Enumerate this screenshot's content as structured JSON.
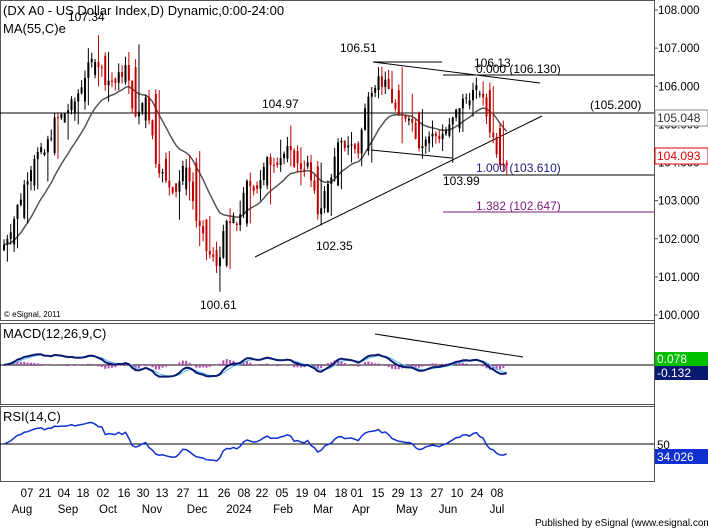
{
  "chart_data": {
    "type": "candlestick",
    "title": "(DX A0 - US Dollar Index,D) Dynamic,0:00-24:00",
    "ma_label": "MA(55,C)e",
    "copyright": "© eSignal, 2011",
    "footer": "Published by eSignal (www.esignal.com)",
    "price_axis": {
      "ticks": [
        "108.000",
        "107.000",
        "106.000",
        "105.000",
        "104.000",
        "103.000",
        "102.000",
        "101.000",
        "100.000"
      ],
      "range": [
        99.9,
        108.1
      ]
    },
    "x_day_labels": [
      "07",
      "21",
      "04",
      "18",
      "02",
      "16",
      "30",
      "13",
      "27",
      "11",
      "26",
      "08",
      "22",
      "05",
      "19",
      "04",
      "18",
      "01",
      "15",
      "29",
      "13",
      "27",
      "10",
      "24",
      "08"
    ],
    "x_month_labels": [
      "Aug",
      "Sep",
      "Oct",
      "Nov",
      "Dec",
      "2024",
      "Feb",
      "Mar",
      "Apr",
      "May",
      "Jun",
      "Jul"
    ],
    "price_labels": {
      "high_oct": "107.34",
      "low_dec": "100.61",
      "level_104_97": "104.97",
      "high_apr": "106.51",
      "high_jun": "106.13",
      "low_mar": "102.35",
      "low_jun": "103.99",
      "fib_0": "0.000 (106.130)",
      "fib_1": "1.000 (103.610)",
      "fib_1382": "1.382 (102.647)",
      "resistance": "(105.200)"
    },
    "price_tags": {
      "ma_value": "105.048",
      "last_price": "104.093"
    },
    "ma_color": "#555555",
    "fib_color_1": "#1b1b7a",
    "fib_color_1382": "#7a1a7a",
    "last_price_color": "#e00000",
    "macd": {
      "label": "MACD(12,26,9,C)",
      "ticks": [
        "0.078",
        "-0.132"
      ],
      "line_color": "#0a1a70",
      "signal_color": "#56b8e8",
      "hist_color": "#b048b0"
    },
    "rsi": {
      "label": "RSI(14,C)",
      "ticks": [
        "50",
        "34.026"
      ],
      "line_color": "#1030d0"
    },
    "candles": [
      {
        "d": "2023-07-31",
        "o": 101.7,
        "h": 101.9,
        "l": 101.4,
        "c": 101.85
      },
      {
        "d": "2023-08-07",
        "o": 101.85,
        "h": 102.7,
        "l": 101.75,
        "c": 102.55
      },
      {
        "d": "2023-08-14",
        "o": 102.55,
        "h": 103.6,
        "l": 102.4,
        "c": 103.4
      },
      {
        "d": "2023-08-21",
        "o": 103.4,
        "h": 104.4,
        "l": 103.3,
        "c": 104.2
      },
      {
        "d": "2023-08-28",
        "o": 104.2,
        "h": 104.5,
        "l": 103.5,
        "c": 104.25
      },
      {
        "d": "2023-09-04",
        "o": 104.25,
        "h": 105.2,
        "l": 104.1,
        "c": 105.05
      },
      {
        "d": "2023-09-11",
        "o": 105.05,
        "h": 105.4,
        "l": 104.6,
        "c": 105.3
      },
      {
        "d": "2023-09-18",
        "o": 105.3,
        "h": 105.8,
        "l": 105.0,
        "c": 105.6
      },
      {
        "d": "2023-09-25",
        "o": 105.6,
        "h": 107.0,
        "l": 105.5,
        "c": 106.3
      },
      {
        "d": "2023-10-02",
        "o": 106.3,
        "h": 107.34,
        "l": 106.0,
        "c": 106.8
      },
      {
        "d": "2023-10-09",
        "o": 106.8,
        "h": 106.9,
        "l": 105.6,
        "c": 106.2
      },
      {
        "d": "2023-10-16",
        "o": 106.2,
        "h": 106.6,
        "l": 105.9,
        "c": 106.1
      },
      {
        "d": "2023-10-23",
        "o": 106.1,
        "h": 106.9,
        "l": 105.8,
        "c": 106.5
      },
      {
        "d": "2023-10-30",
        "o": 106.5,
        "h": 107.1,
        "l": 105.0,
        "c": 105.1
      },
      {
        "d": "2023-11-06",
        "o": 105.1,
        "h": 105.9,
        "l": 105.0,
        "c": 105.8
      },
      {
        "d": "2023-11-13",
        "o": 105.8,
        "h": 105.9,
        "l": 103.8,
        "c": 104.1
      },
      {
        "d": "2023-11-20",
        "o": 104.1,
        "h": 104.3,
        "l": 103.2,
        "c": 103.45
      },
      {
        "d": "2023-11-27",
        "o": 103.45,
        "h": 103.8,
        "l": 102.5,
        "c": 103.3
      },
      {
        "d": "2023-12-04",
        "o": 103.3,
        "h": 104.2,
        "l": 103.0,
        "c": 104.0
      },
      {
        "d": "2023-12-11",
        "o": 104.0,
        "h": 104.3,
        "l": 101.8,
        "c": 102.5
      },
      {
        "d": "2023-12-18",
        "o": 102.5,
        "h": 102.6,
        "l": 101.5,
        "c": 101.7
      },
      {
        "d": "2023-12-25",
        "o": 101.7,
        "h": 101.8,
        "l": 100.61,
        "c": 101.3
      },
      {
        "d": "2024-01-01",
        "o": 101.3,
        "h": 102.8,
        "l": 101.2,
        "c": 102.4
      },
      {
        "d": "2024-01-08",
        "o": 102.4,
        "h": 103.0,
        "l": 102.2,
        "c": 102.4
      },
      {
        "d": "2024-01-15",
        "o": 102.4,
        "h": 103.7,
        "l": 102.4,
        "c": 103.4
      },
      {
        "d": "2024-01-22",
        "o": 103.4,
        "h": 103.8,
        "l": 103.0,
        "c": 103.4
      },
      {
        "d": "2024-01-29",
        "o": 103.4,
        "h": 104.1,
        "l": 102.9,
        "c": 104.0
      },
      {
        "d": "2024-02-05",
        "o": 104.0,
        "h": 104.6,
        "l": 103.9,
        "c": 104.1
      },
      {
        "d": "2024-02-12",
        "o": 104.1,
        "h": 104.97,
        "l": 103.9,
        "c": 104.3
      },
      {
        "d": "2024-02-19",
        "o": 104.3,
        "h": 104.4,
        "l": 103.4,
        "c": 103.9
      },
      {
        "d": "2024-02-26",
        "o": 103.9,
        "h": 104.2,
        "l": 103.7,
        "c": 103.9
      },
      {
        "d": "2024-03-04",
        "o": 103.9,
        "h": 104.0,
        "l": 102.35,
        "c": 102.7
      },
      {
        "d": "2024-03-11",
        "o": 102.7,
        "h": 103.5,
        "l": 102.6,
        "c": 103.4
      },
      {
        "d": "2024-03-18",
        "o": 103.4,
        "h": 104.5,
        "l": 103.3,
        "c": 104.4
      },
      {
        "d": "2024-03-25",
        "o": 104.4,
        "h": 104.8,
        "l": 104.0,
        "c": 104.5
      },
      {
        "d": "2024-04-01",
        "o": 104.5,
        "h": 104.7,
        "l": 103.9,
        "c": 104.3
      },
      {
        "d": "2024-04-08",
        "o": 104.3,
        "h": 105.9,
        "l": 104.0,
        "c": 105.9
      },
      {
        "d": "2024-04-15",
        "o": 105.9,
        "h": 106.51,
        "l": 105.8,
        "c": 106.2
      },
      {
        "d": "2024-04-22",
        "o": 106.2,
        "h": 106.4,
        "l": 105.6,
        "c": 105.9
      },
      {
        "d": "2024-04-29",
        "o": 105.9,
        "h": 106.5,
        "l": 104.5,
        "c": 105.1
      },
      {
        "d": "2024-05-06",
        "o": 105.1,
        "h": 105.8,
        "l": 105.0,
        "c": 105.3
      },
      {
        "d": "2024-05-13",
        "o": 105.3,
        "h": 105.4,
        "l": 104.1,
        "c": 104.5
      },
      {
        "d": "2024-05-20",
        "o": 104.5,
        "h": 105.1,
        "l": 104.4,
        "c": 104.7
      },
      {
        "d": "2024-05-27",
        "o": 104.7,
        "h": 105.0,
        "l": 104.3,
        "c": 104.7
      },
      {
        "d": "2024-06-03",
        "o": 104.7,
        "h": 105.0,
        "l": 103.99,
        "c": 104.9
      },
      {
        "d": "2024-06-10",
        "o": 104.9,
        "h": 105.8,
        "l": 104.8,
        "c": 105.5
      },
      {
        "d": "2024-06-17",
        "o": 105.5,
        "h": 105.9,
        "l": 105.2,
        "c": 105.8
      },
      {
        "d": "2024-06-24",
        "o": 105.8,
        "h": 106.13,
        "l": 105.5,
        "c": 105.9
      },
      {
        "d": "2024-07-01",
        "o": 105.9,
        "h": 106.0,
        "l": 104.8,
        "c": 104.9
      },
      {
        "d": "2024-07-08",
        "o": 104.9,
        "h": 105.1,
        "l": 104.09,
        "c": 104.09
      }
    ]
  }
}
